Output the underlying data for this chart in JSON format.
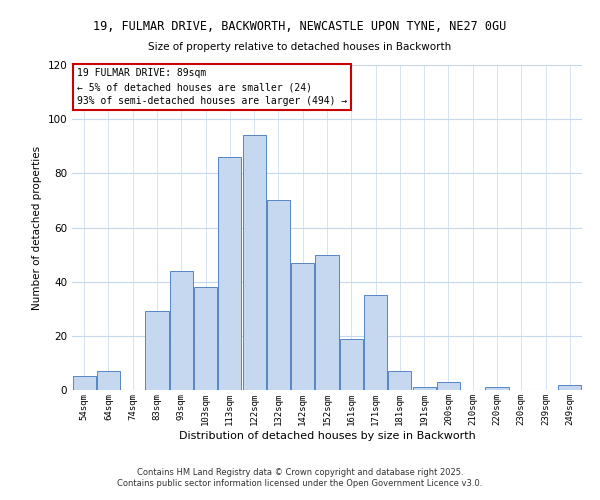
{
  "title1": "19, FULMAR DRIVE, BACKWORTH, NEWCASTLE UPON TYNE, NE27 0GU",
  "title2": "Size of property relative to detached houses in Backworth",
  "xlabel": "Distribution of detached houses by size in Backworth",
  "ylabel": "Number of detached properties",
  "bar_labels": [
    "54sqm",
    "64sqm",
    "74sqm",
    "83sqm",
    "93sqm",
    "103sqm",
    "113sqm",
    "122sqm",
    "132sqm",
    "142sqm",
    "152sqm",
    "161sqm",
    "171sqm",
    "181sqm",
    "191sqm",
    "200sqm",
    "210sqm",
    "220sqm",
    "230sqm",
    "239sqm",
    "249sqm"
  ],
  "bar_values": [
    5,
    7,
    0,
    29,
    44,
    38,
    86,
    94,
    70,
    47,
    50,
    19,
    35,
    7,
    1,
    3,
    0,
    1,
    0,
    0,
    2
  ],
  "bar_color": "#c5d8f0",
  "bar_edge_color": "#5585c5",
  "bg_color": "#ffffff",
  "grid_color": "#c8d8ec",
  "annotation_title": "19 FULMAR DRIVE: 89sqm",
  "annotation_line2": "← 5% of detached houses are smaller (24)",
  "annotation_line3": "93% of semi-detached houses are larger (494) →",
  "annotation_box_edge": "#cc0000",
  "ylim": [
    0,
    120
  ],
  "yticks": [
    0,
    20,
    40,
    60,
    80,
    100,
    120
  ],
  "footnote1": "Contains HM Land Registry data © Crown copyright and database right 2025.",
  "footnote2": "Contains public sector information licensed under the Open Government Licence v3.0."
}
